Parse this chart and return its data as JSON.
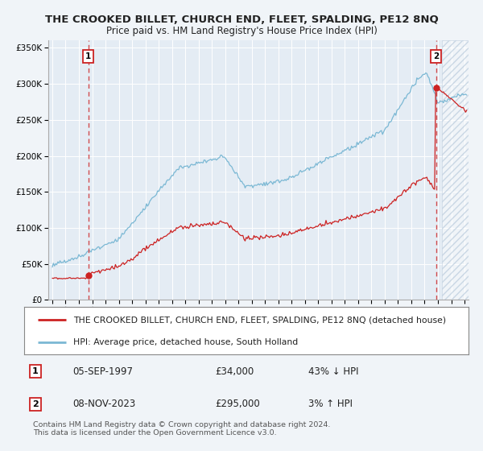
{
  "title": "THE CROOKED BILLET, CHURCH END, FLEET, SPALDING, PE12 8NQ",
  "subtitle": "Price paid vs. HM Land Registry's House Price Index (HPI)",
  "legend_line1": "THE CROOKED BILLET, CHURCH END, FLEET, SPALDING, PE12 8NQ (detached house)",
  "legend_line2": "HPI: Average price, detached house, South Holland",
  "note": "Contains HM Land Registry data © Crown copyright and database right 2024.\nThis data is licensed under the Open Government Licence v3.0.",
  "point1_date": "05-SEP-1997",
  "point1_price": 34000,
  "point1_label": "43% ↓ HPI",
  "point2_date": "08-NOV-2023",
  "point2_price": 295000,
  "point2_label": "3% ↑ HPI",
  "ylim": [
    0,
    360000
  ],
  "xlim_left": 1994.7,
  "xlim_right": 2026.3,
  "hpi_color": "#7bb8d4",
  "property_color": "#cc2222",
  "bg_color": "#f0f4f8",
  "plot_bg": "#e4ecf4",
  "grid_color": "#ffffff",
  "sale1_x": 1997.7,
  "sale2_x": 2023.85,
  "hatch_start": 2024.3
}
